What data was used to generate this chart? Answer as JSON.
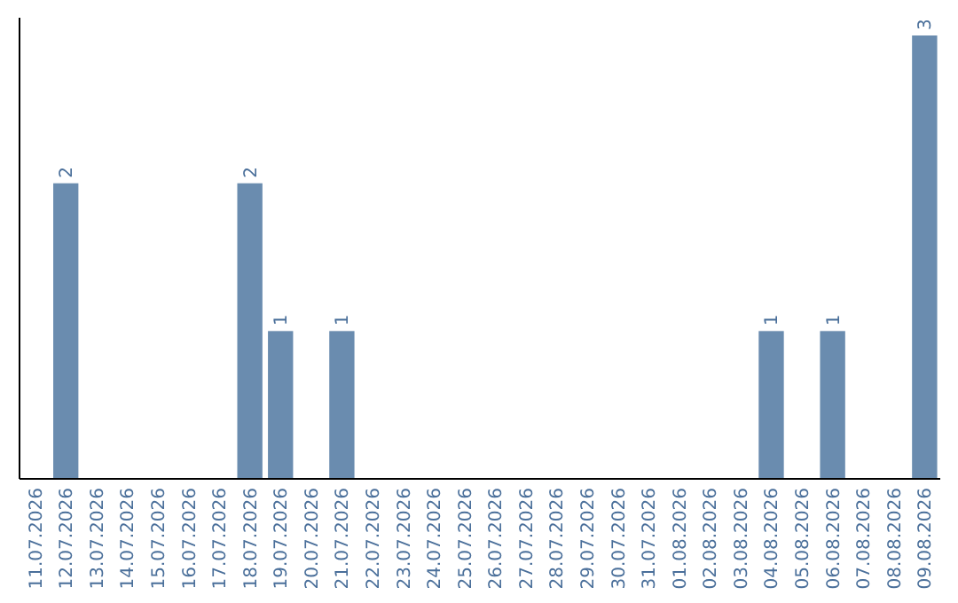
{
  "chart_data": {
    "type": "bar",
    "categories": [
      "11.07.2026",
      "12.07.2026",
      "13.07.2026",
      "14.07.2026",
      "15.07.2026",
      "16.07.2026",
      "17.07.2026",
      "18.07.2026",
      "19.07.2026",
      "20.07.2026",
      "21.07.2026",
      "22.07.2026",
      "23.07.2026",
      "24.07.2026",
      "25.07.2026",
      "26.07.2026",
      "27.07.2026",
      "28.07.2026",
      "29.07.2026",
      "30.07.2026",
      "31.07.2026",
      "01.08.2026",
      "02.08.2026",
      "03.08.2026",
      "04.08.2026",
      "05.08.2026",
      "06.08.2026",
      "07.08.2026",
      "08.08.2026",
      "09.08.2026"
    ],
    "values": [
      0,
      2,
      0,
      0,
      0,
      0,
      0,
      2,
      1,
      0,
      1,
      0,
      0,
      0,
      0,
      0,
      0,
      0,
      0,
      0,
      0,
      0,
      0,
      0,
      1,
      0,
      1,
      0,
      0,
      3
    ],
    "value_labels": [
      null,
      "2",
      null,
      null,
      null,
      null,
      null,
      "2",
      "1",
      null,
      "1",
      null,
      null,
      null,
      null,
      null,
      null,
      null,
      null,
      null,
      null,
      null,
      null,
      null,
      "1",
      null,
      "1",
      null,
      null,
      "3"
    ],
    "color": "#6a8caf",
    "tick_labels": "x"
  }
}
